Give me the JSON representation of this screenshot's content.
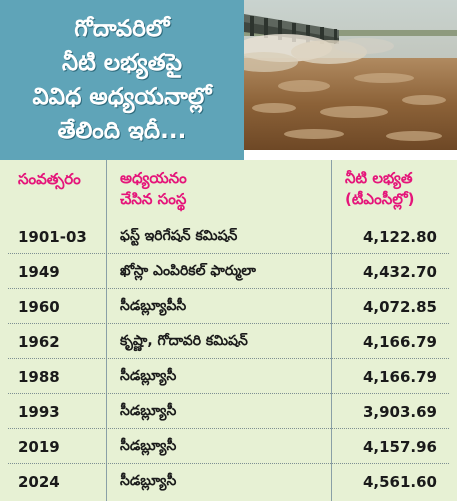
{
  "title": {
    "line1": "గోదావరిలో",
    "line2": "నీటి లభ్యతపై",
    "line3": "వివిధ అధ్యయనాల్లో",
    "line4": "తేలింది ఇదీ..."
  },
  "colors": {
    "title_bg": "#5fa4b8",
    "table_bg": "#e7f1d4",
    "header_text": "#e5157a"
  },
  "table": {
    "headers": {
      "year": "సంవత్సరం",
      "agency_line1": "అధ్యయనం",
      "agency_line2": "చేసిన సంస్థ",
      "availability_line1": "నీటి లభ్యత",
      "availability_line2": "(టీఎంసీల్లో)"
    },
    "rows": [
      {
        "year": "1901-03",
        "agency": "ఫస్ట్ ఇరిగేషన్ కమిషన్",
        "value": "4,122.80"
      },
      {
        "year": "1949",
        "agency": "ఖోస్లా ఎంపిరికల్ ఫార్ములా",
        "value": "4,432.70"
      },
      {
        "year": "1960",
        "agency": "సీడబ్ల్యూపీసీ",
        "value": "4,072.85"
      },
      {
        "year": "1962",
        "agency": "కృష్ణా, గోదావరి కమిషన్",
        "value": "4,166.79"
      },
      {
        "year": "1988",
        "agency": "సీడబ్ల్యూసీ",
        "value": "4,166.79"
      },
      {
        "year": "1993",
        "agency": "సీడబ్ల్యూసీ",
        "value": "3,903.69"
      },
      {
        "year": "2019",
        "agency": "సీడబ్ల్యూసీ",
        "value": "4,157.96"
      },
      {
        "year": "2024",
        "agency": "సీడబ్ల్యూసీ",
        "value": "4,561.60"
      }
    ]
  }
}
